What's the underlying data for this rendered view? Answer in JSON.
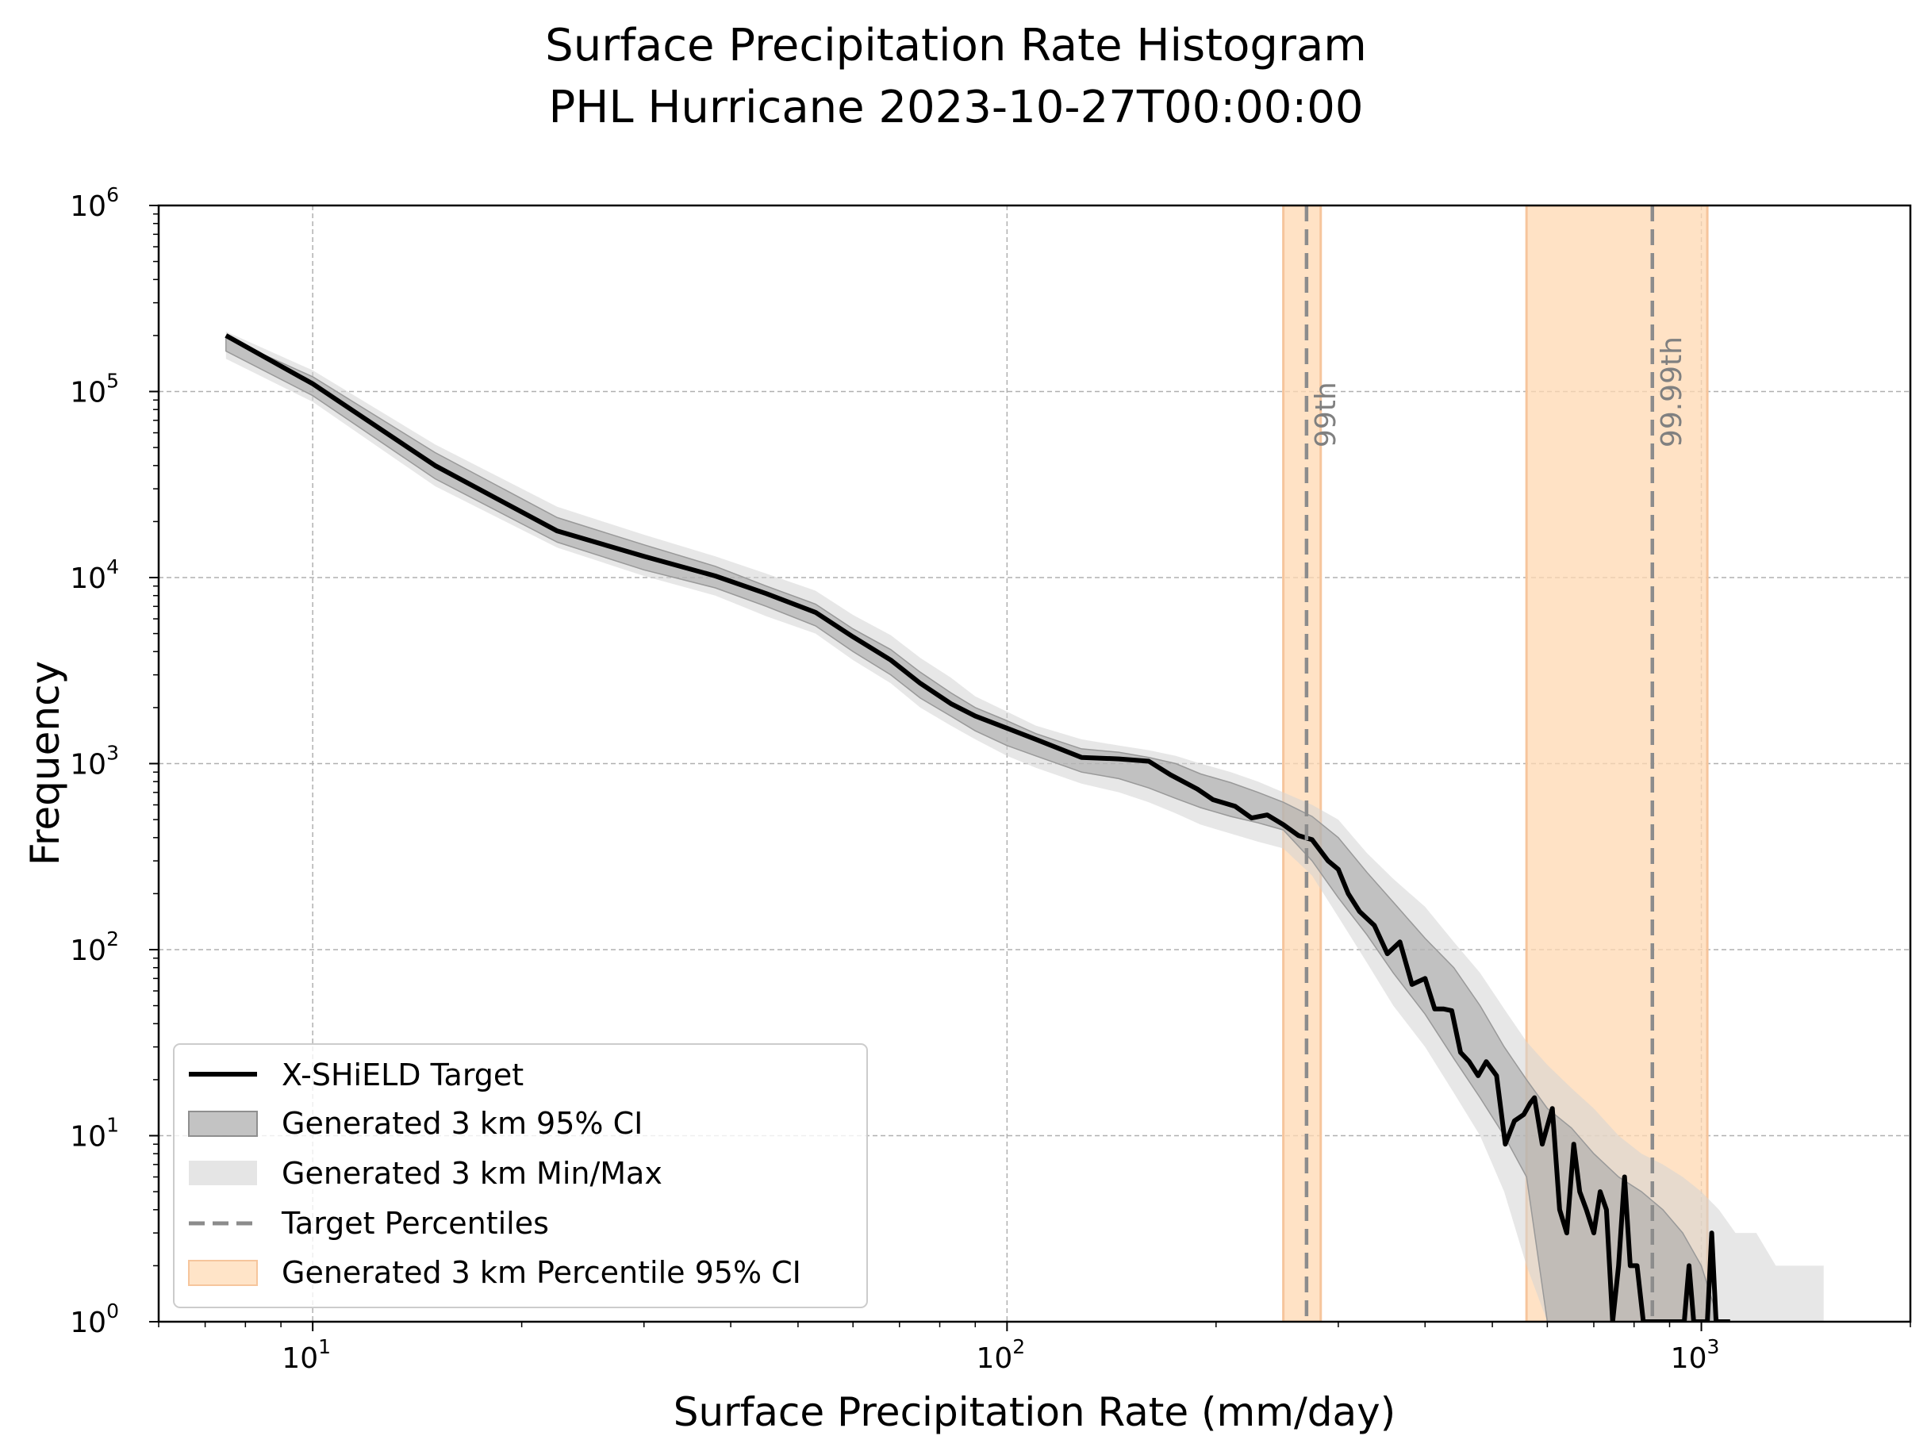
{
  "chart_data": {
    "type": "line",
    "title": "Surface Precipitation Rate Histogram",
    "subtitle": "PHL Hurricane 2023-10-27T00:00:00",
    "xlabel": "Surface Precipitation Rate (mm/day)",
    "ylabel": "Frequency",
    "xscale": "log",
    "yscale": "log",
    "xlim": [
      6,
      2000
    ],
    "ylim": [
      1,
      1000000
    ],
    "grid": true,
    "legend_position": "lower-left",
    "x_ticks": [
      10,
      100,
      1000
    ],
    "x_tick_labels": [
      {
        "base": "10",
        "exp": "1"
      },
      {
        "base": "10",
        "exp": "2"
      },
      {
        "base": "10",
        "exp": "3"
      }
    ],
    "y_ticks": [
      1,
      10,
      100,
      1000,
      10000,
      100000,
      1000000
    ],
    "y_tick_labels": [
      {
        "base": "10",
        "exp": "0"
      },
      {
        "base": "10",
        "exp": "1"
      },
      {
        "base": "10",
        "exp": "2"
      },
      {
        "base": "10",
        "exp": "3"
      },
      {
        "base": "10",
        "exp": "4"
      },
      {
        "base": "10",
        "exp": "5"
      },
      {
        "base": "10",
        "exp": "6"
      }
    ],
    "colors": {
      "target": "#000000",
      "ci": "#a9a9a9",
      "minmax": "#d3d3d3",
      "percentile_line": "#8c8c8c",
      "percentile_band": "#ffd8b1",
      "percentile_label": "#808080",
      "grid": "#b0b0b0"
    },
    "target": {
      "name": "X-SHiELD Target",
      "x": [
        7.5,
        10,
        15,
        22.5,
        30,
        38,
        45,
        53,
        60,
        68,
        75,
        83,
        90,
        100,
        110,
        128,
        145,
        160,
        172,
        188,
        198,
        213,
        225,
        237,
        250,
        263,
        275,
        290,
        300,
        310,
        322,
        338,
        353,
        368,
        383,
        400,
        413,
        425,
        437,
        450,
        463,
        477,
        490,
        507,
        522,
        538,
        555,
        567,
        575,
        590,
        610,
        625,
        640,
        655,
        668,
        683,
        700,
        715,
        730,
        745,
        760,
        775,
        790,
        808,
        825,
        840,
        855,
        870,
        885,
        900,
        915,
        930,
        945,
        960,
        975,
        990,
        1005,
        1020,
        1035,
        1050,
        1065,
        1080,
        1100
      ],
      "y": [
        200000,
        110000,
        40000,
        17800,
        13000,
        10200,
        8200,
        6500,
        4800,
        3600,
        2700,
        2100,
        1800,
        1550,
        1350,
        1080,
        1060,
        1030,
        870,
        730,
        640,
        590,
        510,
        530,
        470,
        410,
        390,
        300,
        270,
        200,
        160,
        135,
        95,
        110,
        65,
        70,
        48,
        48,
        47,
        28,
        25,
        21,
        25,
        21,
        9,
        12,
        13,
        15,
        16,
        9,
        14,
        4,
        3,
        9,
        5,
        4,
        3,
        5,
        4,
        1,
        2,
        6,
        2,
        2,
        1,
        1,
        1,
        1,
        1,
        1,
        1,
        1,
        1,
        2,
        1,
        1,
        1,
        1,
        3,
        1,
        1,
        1,
        1
      ]
    },
    "ci_band": {
      "name": "Generated 3 km 95% CI",
      "x": [
        7.5,
        10,
        15,
        22.5,
        30,
        38,
        45,
        53,
        60,
        68,
        75,
        83,
        90,
        100,
        110,
        128,
        145,
        160,
        175,
        190,
        210,
        230,
        250,
        275,
        300,
        330,
        360,
        400,
        440,
        480,
        520,
        560,
        600,
        650,
        700,
        760,
        820,
        880,
        940,
        1000,
        1060
      ],
      "lower": [
        165000,
        95000,
        34000,
        15500,
        11000,
        8800,
        7000,
        5500,
        4000,
        3000,
        2250,
        1800,
        1500,
        1250,
        1100,
        900,
        830,
        740,
        650,
        580,
        520,
        480,
        440,
        300,
        190,
        120,
        75,
        45,
        26,
        16,
        10,
        6,
        1,
        1,
        1,
        1,
        1,
        1,
        1,
        1,
        1
      ],
      "upper": [
        195000,
        120000,
        47000,
        21000,
        15000,
        11500,
        9000,
        7200,
        5300,
        4100,
        3100,
        2400,
        2000,
        1700,
        1450,
        1200,
        1150,
        1080,
        1000,
        880,
        790,
        700,
        620,
        520,
        400,
        260,
        180,
        115,
        80,
        50,
        30,
        20,
        14,
        11,
        8,
        6,
        5,
        4,
        3,
        2,
        1
      ]
    },
    "minmax_band": {
      "name": "Generated 3 km Min/Max",
      "x": [
        7.5,
        10,
        15,
        22.5,
        30,
        38,
        45,
        53,
        60,
        68,
        75,
        83,
        90,
        100,
        110,
        128,
        145,
        160,
        175,
        190,
        210,
        230,
        250,
        275,
        300,
        330,
        360,
        400,
        440,
        480,
        520,
        560,
        600,
        650,
        700,
        760,
        820,
        880,
        940,
        1000,
        1060,
        1120,
        1200,
        1280,
        1360,
        1440,
        1500
      ],
      "lower": [
        150000,
        88000,
        31000,
        14500,
        10200,
        8000,
        6200,
        5000,
        3600,
        2700,
        2000,
        1600,
        1350,
        1100,
        950,
        780,
        700,
        620,
        540,
        470,
        420,
        380,
        350,
        250,
        150,
        85,
        50,
        30,
        17,
        10,
        5,
        2,
        1,
        1,
        1,
        1,
        1,
        1,
        1,
        1,
        1,
        1,
        1,
        1,
        1,
        1,
        1
      ],
      "upper": [
        210000,
        130000,
        52000,
        24000,
        17000,
        13000,
        10500,
        8500,
        6300,
        4900,
        3700,
        2900,
        2300,
        1900,
        1600,
        1350,
        1250,
        1180,
        1100,
        1000,
        900,
        800,
        700,
        600,
        500,
        330,
        240,
        170,
        110,
        75,
        48,
        32,
        24,
        18,
        14,
        10,
        8,
        7,
        6,
        5,
        4,
        3,
        3,
        2,
        2,
        2,
        2
      ]
    },
    "percentiles": {
      "legend_line": "Target Percentiles",
      "legend_band": "Generated 3 km Percentile 95% CI",
      "items": [
        {
          "label": "99th",
          "value": 270,
          "ci": [
            250,
            283
          ]
        },
        {
          "label": "99.99th",
          "value": 850,
          "ci": [
            560,
            1020
          ]
        }
      ]
    }
  }
}
